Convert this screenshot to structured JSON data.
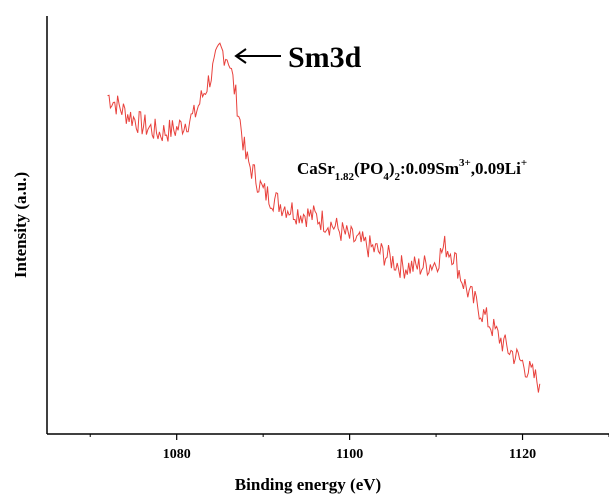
{
  "chart_data": {
    "type": "line",
    "xlabel": "Binding energy (eV)",
    "ylabel": "Intensity (a.u.)",
    "xlim": [
      1065,
      1130
    ],
    "ylim": [
      0,
      100
    ],
    "x_ticks": [
      1080,
      1100,
      1120
    ],
    "y_ticks_visible": false,
    "grid": false,
    "series": [
      {
        "color": "#e8413c",
        "x": [
          1072,
          1074,
          1076,
          1078,
          1080,
          1082,
          1084,
          1085,
          1086,
          1087,
          1088,
          1090,
          1092,
          1094,
          1096,
          1098,
          1100,
          1102,
          1104,
          1106,
          1108,
          1110,
          1111,
          1112,
          1113,
          1114,
          1116,
          1118,
          1120,
          1122
        ],
        "y": [
          81,
          77,
          74,
          72,
          73,
          76,
          86,
          92,
          90,
          79,
          66,
          58,
          55,
          53,
          52,
          50,
          47,
          45,
          43,
          40,
          40,
          41,
          45,
          43,
          37,
          33,
          27,
          21,
          17,
          12
        ]
      }
    ],
    "annotations": [
      {
        "text_main": "Sm3d",
        "arrow": "left"
      },
      {
        "formula": [
          {
            "t": "CaSr",
            "s": ""
          },
          {
            "t": "1.82",
            "s": "sub"
          },
          {
            "t": "(PO",
            "s": ""
          },
          {
            "t": "4",
            "s": "sub"
          },
          {
            "t": ")",
            "s": ""
          },
          {
            "t": "2",
            "s": "sub"
          },
          {
            "t": ":0.09Sm",
            "s": ""
          },
          {
            "t": "3+",
            "s": "sup"
          },
          {
            "t": ",0.09Li",
            "s": ""
          },
          {
            "t": "+",
            "s": "sup"
          }
        ]
      }
    ]
  }
}
